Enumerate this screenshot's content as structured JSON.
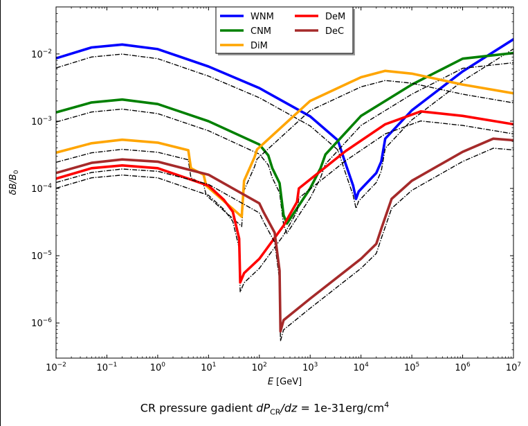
{
  "chart_data": {
    "type": "line",
    "xlabel_var": "E",
    "xlabel_unit": "[GeV]",
    "ylabel_var": "δB/B",
    "ylabel_sub": "0",
    "x_scale": "log",
    "y_scale": "log",
    "xlim": [
      0.01,
      10000000
    ],
    "ylim": [
      3e-07,
      0.05
    ],
    "legend_placement": "upper-center",
    "x_ticks": [
      {
        "base": "10",
        "exp": "−2",
        "value": 0.01
      },
      {
        "base": "10",
        "exp": "−1",
        "value": 0.1
      },
      {
        "base": "10",
        "exp": "0",
        "value": 1
      },
      {
        "base": "10",
        "exp": "1",
        "value": 10
      },
      {
        "base": "10",
        "exp": "2",
        "value": 100
      },
      {
        "base": "10",
        "exp": "3",
        "value": 1000
      },
      {
        "base": "10",
        "exp": "4",
        "value": 10000
      },
      {
        "base": "10",
        "exp": "5",
        "value": 100000
      },
      {
        "base": "10",
        "exp": "6",
        "value": 1000000
      },
      {
        "base": "10",
        "exp": "7",
        "value": 10000000
      }
    ],
    "y_ticks": [
      {
        "base": "10",
        "exp": "−6",
        "value": 1e-06
      },
      {
        "base": "10",
        "exp": "−5",
        "value": 1e-05
      },
      {
        "base": "10",
        "exp": "−4",
        "value": 0.0001
      },
      {
        "base": "10",
        "exp": "−3",
        "value": 0.001
      },
      {
        "base": "10",
        "exp": "−2",
        "value": 0.01
      }
    ],
    "series": [
      {
        "name": "WNM",
        "color": "#0000ff",
        "points": [
          [
            0.01,
            0.0086
          ],
          [
            0.05,
            0.0125
          ],
          [
            0.2,
            0.0138
          ],
          [
            1,
            0.0118
          ],
          [
            10,
            0.0065
          ],
          [
            100,
            0.0031
          ],
          [
            1000,
            0.00118
          ],
          [
            3500,
            0.00052
          ],
          [
            5000,
            0.00023
          ],
          [
            7000,
            0.00011
          ],
          [
            8000,
            7e-05
          ],
          [
            9000,
            9e-05
          ],
          [
            20000,
            0.00017
          ],
          [
            25000,
            0.00025
          ],
          [
            30000,
            0.00055
          ],
          [
            100000,
            0.00145
          ],
          [
            1000000,
            0.0055
          ],
          [
            10000000,
            0.0165
          ]
        ]
      },
      {
        "name": "CNM",
        "color": "#008000",
        "points": [
          [
            0.01,
            0.00135
          ],
          [
            0.05,
            0.0019
          ],
          [
            0.2,
            0.0021
          ],
          [
            1,
            0.0018
          ],
          [
            10,
            0.001
          ],
          [
            100,
            0.00045
          ],
          [
            150,
            0.00031
          ],
          [
            180,
            0.0002
          ],
          [
            250,
            0.00012
          ],
          [
            300,
            4e-05
          ],
          [
            350,
            3e-05
          ],
          [
            1000,
            0.0001
          ],
          [
            1600,
            0.0002
          ],
          [
            2000,
            0.00032
          ],
          [
            10000,
            0.0012
          ],
          [
            100000,
            0.0035
          ],
          [
            1000000,
            0.0085
          ],
          [
            10000000,
            0.0103
          ]
        ]
      },
      {
        "name": "DiM",
        "color": "#ffa500",
        "points": [
          [
            0.01,
            0.00034
          ],
          [
            0.05,
            0.00047
          ],
          [
            0.2,
            0.00053
          ],
          [
            1,
            0.00048
          ],
          [
            4,
            0.00037
          ],
          [
            4.5,
            0.0002
          ],
          [
            8,
            0.00016
          ],
          [
            9,
            0.00011
          ],
          [
            45,
            3.8e-05
          ],
          [
            50,
            0.00013
          ],
          [
            80,
            0.00029
          ],
          [
            90,
            0.00038
          ],
          [
            1000,
            0.002
          ],
          [
            10000,
            0.0045
          ],
          [
            30000,
            0.0056
          ],
          [
            100000,
            0.0051
          ],
          [
            1000000,
            0.0035
          ],
          [
            10000000,
            0.0026
          ]
        ]
      },
      {
        "name": "DeM",
        "color": "#ff0000",
        "points": [
          [
            0.01,
            0.00014
          ],
          [
            0.05,
            0.0002
          ],
          [
            0.2,
            0.00022
          ],
          [
            1,
            0.0002
          ],
          [
            10,
            0.00011
          ],
          [
            20,
            6.8e-05
          ],
          [
            30,
            4.5e-05
          ],
          [
            40,
            1.8e-05
          ],
          [
            42,
            4e-06
          ],
          [
            50,
            5.5e-06
          ],
          [
            100,
            9e-06
          ],
          [
            300,
            2.8e-05
          ],
          [
            550,
            6.3e-05
          ],
          [
            600,
            0.0001
          ],
          [
            5000,
            0.00036
          ],
          [
            30000,
            0.0009
          ],
          [
            150000,
            0.0014
          ],
          [
            1000000,
            0.0012
          ],
          [
            10000000,
            0.0009
          ]
        ]
      },
      {
        "name": "DeC",
        "color": "#a52a2a",
        "points": [
          [
            0.01,
            0.00017
          ],
          [
            0.05,
            0.00024
          ],
          [
            0.2,
            0.00027
          ],
          [
            1,
            0.00025
          ],
          [
            10,
            0.00016
          ],
          [
            100,
            6e-05
          ],
          [
            120,
            4.5e-05
          ],
          [
            200,
            2.2e-05
          ],
          [
            250,
            6e-06
          ],
          [
            260,
            7.5e-07
          ],
          [
            300,
            1.1e-06
          ],
          [
            1000,
            2.3e-06
          ],
          [
            10000,
            9e-06
          ],
          [
            20000,
            1.5e-05
          ],
          [
            25000,
            2.5e-05
          ],
          [
            40000,
            7e-05
          ],
          [
            100000,
            0.00013
          ],
          [
            1000000,
            0.00035
          ],
          [
            4000000,
            0.00055
          ],
          [
            10000000,
            0.00052
          ]
        ]
      }
    ]
  },
  "caption": {
    "prefix": "CR pressure gadient ",
    "var_d": "dP",
    "var_sub": "CR",
    "var_dz": "/dz",
    "equals": " = ",
    "value": "1e-31erg/cm",
    "unit_exp": "4"
  }
}
